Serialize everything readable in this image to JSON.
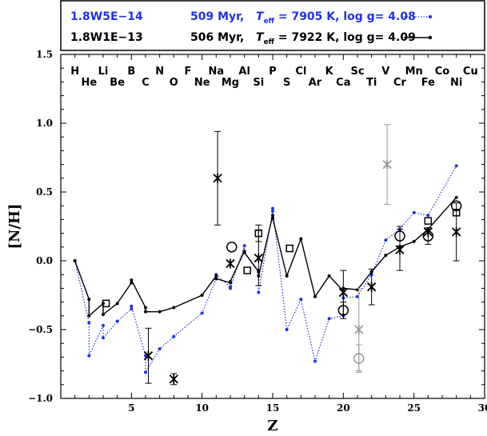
{
  "chart_data": {
    "type": "scatter",
    "xlabel": "Z",
    "ylabel": "[N/H]",
    "xlim": [
      0,
      30
    ],
    "ylim": [
      -1.0,
      1.5
    ],
    "x_ticks": [
      5,
      10,
      15,
      20,
      25,
      30
    ],
    "y_ticks": [
      -1.0,
      -0.5,
      0.0,
      0.5,
      1.0,
      1.5
    ],
    "x_tick_labels": [
      "5",
      "10",
      "15",
      "20",
      "25",
      "30"
    ],
    "y_tick_labels": [
      "−1.0",
      "−0.5",
      "0.0",
      "0.5",
      "1.0",
      "1.5"
    ],
    "elements_top": [
      {
        "z": 1,
        "label": "H"
      },
      {
        "z": 3,
        "label": "Li"
      },
      {
        "z": 5,
        "label": "B"
      },
      {
        "z": 7,
        "label": "N"
      },
      {
        "z": 9,
        "label": "F"
      },
      {
        "z": 11,
        "label": "Na"
      },
      {
        "z": 13,
        "label": "Al"
      },
      {
        "z": 15,
        "label": "P"
      },
      {
        "z": 17,
        "label": "Cl"
      },
      {
        "z": 19,
        "label": "K"
      },
      {
        "z": 21,
        "label": "Sc"
      },
      {
        "z": 23,
        "label": "V"
      },
      {
        "z": 25,
        "label": "Mn"
      },
      {
        "z": 27,
        "label": "Co"
      },
      {
        "z": 29,
        "label": "Cu"
      }
    ],
    "elements_bottom": [
      {
        "z": 2,
        "label": "He"
      },
      {
        "z": 4,
        "label": "Be"
      },
      {
        "z": 6,
        "label": "C"
      },
      {
        "z": 8,
        "label": "O"
      },
      {
        "z": 10,
        "label": "Ne"
      },
      {
        "z": 12,
        "label": "Mg"
      },
      {
        "z": 14,
        "label": "Si"
      },
      {
        "z": 16,
        "label": "S"
      },
      {
        "z": 18,
        "label": "Ar"
      },
      {
        "z": 20,
        "label": "Ca"
      },
      {
        "z": 22,
        "label": "Ti"
      },
      {
        "z": 24,
        "label": "Cr"
      },
      {
        "z": 26,
        "label": "Fe"
      },
      {
        "z": 28,
        "label": "Ni"
      }
    ],
    "legend": [
      {
        "name": "1.8W5E−14",
        "age": "509 Myr,",
        "teff_symbol": "T",
        "teff_sub": "eff",
        "teff_value": " = 7905 K, log g= 4.08",
        "color": "#2233dd",
        "style": "dotted"
      },
      {
        "name": "1.8W1E−13",
        "age": "506 Myr,",
        "teff_symbol": "T",
        "teff_sub": "eff",
        "teff_value": " = 7922 K, log g= 4.09",
        "color": "#000000",
        "style": "solid"
      }
    ],
    "series": [
      {
        "name": "1.8W5E−14",
        "color": "#2233dd",
        "line_style": "dotted",
        "x": [
          1,
          2,
          2,
          3,
          3,
          4,
          5,
          5,
          6,
          6,
          7,
          8,
          10,
          11,
          11,
          12,
          12,
          13,
          13,
          14,
          14,
          15,
          15,
          16,
          17,
          18,
          19,
          20,
          20,
          21,
          22,
          23,
          24,
          25,
          26,
          28
        ],
        "y": [
          0.0,
          -0.45,
          -0.69,
          -0.47,
          -0.56,
          -0.44,
          -0.35,
          -0.33,
          -0.69,
          -0.81,
          -0.64,
          -0.55,
          -0.38,
          -0.13,
          -0.1,
          -0.19,
          -0.2,
          0.11,
          0.06,
          -0.07,
          -0.23,
          0.36,
          0.38,
          -0.5,
          -0.28,
          -0.73,
          -0.42,
          -0.4,
          -0.27,
          -0.26,
          -0.1,
          0.15,
          0.23,
          0.35,
          0.33,
          0.69
        ]
      },
      {
        "name": "1.8W1E−13",
        "color": "#000000",
        "line_style": "solid",
        "x": [
          1,
          2,
          2,
          3,
          3,
          4,
          5,
          5,
          6,
          6,
          7,
          8,
          10,
          11,
          11,
          12,
          12,
          13,
          13,
          14,
          14,
          15,
          15,
          16,
          17,
          18,
          19,
          20,
          20,
          21,
          22,
          23,
          24,
          25,
          26,
          28
        ],
        "y": [
          0.0,
          -0.28,
          -0.4,
          -0.31,
          -0.39,
          -0.31,
          -0.16,
          -0.14,
          -0.34,
          -0.37,
          -0.37,
          -0.34,
          -0.25,
          -0.11,
          -0.13,
          -0.16,
          -0.15,
          0.07,
          0.06,
          -0.08,
          -0.11,
          0.33,
          0.31,
          -0.11,
          0.16,
          -0.26,
          -0.11,
          -0.22,
          -0.2,
          -0.21,
          -0.08,
          0.04,
          0.1,
          0.14,
          0.23,
          0.46
        ]
      }
    ],
    "observations": [
      {
        "z": 3.2,
        "y": -0.31,
        "marker": "square",
        "color": "#000000"
      },
      {
        "z": 6.2,
        "y": -0.69,
        "marker": "star",
        "color": "#000000",
        "err": 0.2
      },
      {
        "z": 8.0,
        "y": -0.86,
        "marker": "star",
        "color": "#000000",
        "err": 0.04
      },
      {
        "z": 11.1,
        "y": 0.6,
        "marker": "star",
        "color": "#000000",
        "err": 0.34
      },
      {
        "z": 12.1,
        "y": 0.1,
        "marker": "circle",
        "color": "#000000"
      },
      {
        "z": 12.0,
        "y": -0.02,
        "marker": "star",
        "color": "#000000"
      },
      {
        "z": 13.2,
        "y": -0.07,
        "marker": "square",
        "color": "#000000"
      },
      {
        "z": 14.0,
        "y": 0.2,
        "marker": "square",
        "color": "#000000",
        "err": 0.06
      },
      {
        "z": 14.0,
        "y": 0.02,
        "marker": "star",
        "color": "#000000",
        "err": 0.2
      },
      {
        "z": 16.2,
        "y": 0.09,
        "marker": "square",
        "color": "#000000"
      },
      {
        "z": 20.0,
        "y": -0.36,
        "marker": "circle",
        "color": "#000000",
        "err": 0.06
      },
      {
        "z": 20.0,
        "y": -0.23,
        "marker": "star",
        "color": "#000000",
        "err": 0.16
      },
      {
        "z": 21.1,
        "y": -0.71,
        "marker": "circle",
        "color": "#999999",
        "err": 0.1
      },
      {
        "z": 21.1,
        "y": -0.5,
        "marker": "star",
        "color": "#999999",
        "err": 0.3
      },
      {
        "z": 22.0,
        "y": -0.19,
        "marker": "star",
        "color": "#000000",
        "err": 0.13
      },
      {
        "z": 23.1,
        "y": 0.7,
        "marker": "star",
        "color": "#999999",
        "err": 0.29
      },
      {
        "z": 24.0,
        "y": 0.18,
        "marker": "circle",
        "color": "#000000",
        "err": 0.07
      },
      {
        "z": 24.0,
        "y": 0.08,
        "marker": "star",
        "color": "#000000",
        "err": 0.15
      },
      {
        "z": 26.0,
        "y": 0.29,
        "marker": "square",
        "color": "#000000"
      },
      {
        "z": 26.0,
        "y": 0.18,
        "marker": "circle",
        "color": "#000000",
        "err": 0.06
      },
      {
        "z": 26.0,
        "y": 0.21,
        "marker": "star",
        "color": "#000000"
      },
      {
        "z": 28.0,
        "y": 0.4,
        "marker": "circle",
        "color": "#000000"
      },
      {
        "z": 28.0,
        "y": 0.35,
        "marker": "square",
        "color": "#000000"
      },
      {
        "z": 28.0,
        "y": 0.21,
        "marker": "star",
        "color": "#000000",
        "err": 0.21
      }
    ]
  }
}
